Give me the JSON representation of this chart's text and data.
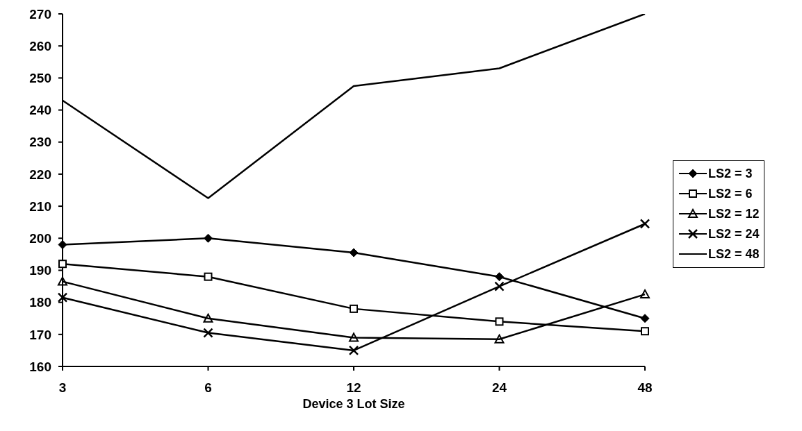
{
  "chart_data": {
    "type": "line",
    "xlabel": "Device 3 Lot Size",
    "categories": [
      "3",
      "6",
      "12",
      "24",
      "48"
    ],
    "series": [
      {
        "name": "LS2 = 3",
        "color": "#000000",
        "marker": "diamond",
        "values": [
          198,
          200,
          195.5,
          188,
          175
        ]
      },
      {
        "name": "LS2 = 6",
        "color": "#000000",
        "marker": "square",
        "values": [
          192,
          188,
          178,
          174,
          171
        ]
      },
      {
        "name": "LS2 = 12",
        "color": "#000000",
        "marker": "triangle",
        "values": [
          186.5,
          175,
          169,
          168.5,
          182.5
        ]
      },
      {
        "name": "LS2 = 24",
        "color": "#000000",
        "marker": "cross",
        "values": [
          181.5,
          170.5,
          165,
          185,
          204.5
        ]
      },
      {
        "name": "LS2 = 48",
        "color": "#000000",
        "marker": "none",
        "values": [
          243,
          212.5,
          247.5,
          253,
          270
        ]
      }
    ],
    "ylim": [
      160,
      270
    ],
    "yticks": [
      160,
      170,
      180,
      190,
      200,
      210,
      220,
      230,
      240,
      250,
      260,
      270
    ],
    "grid": false,
    "legend": "right",
    "line_style": "solid"
  }
}
